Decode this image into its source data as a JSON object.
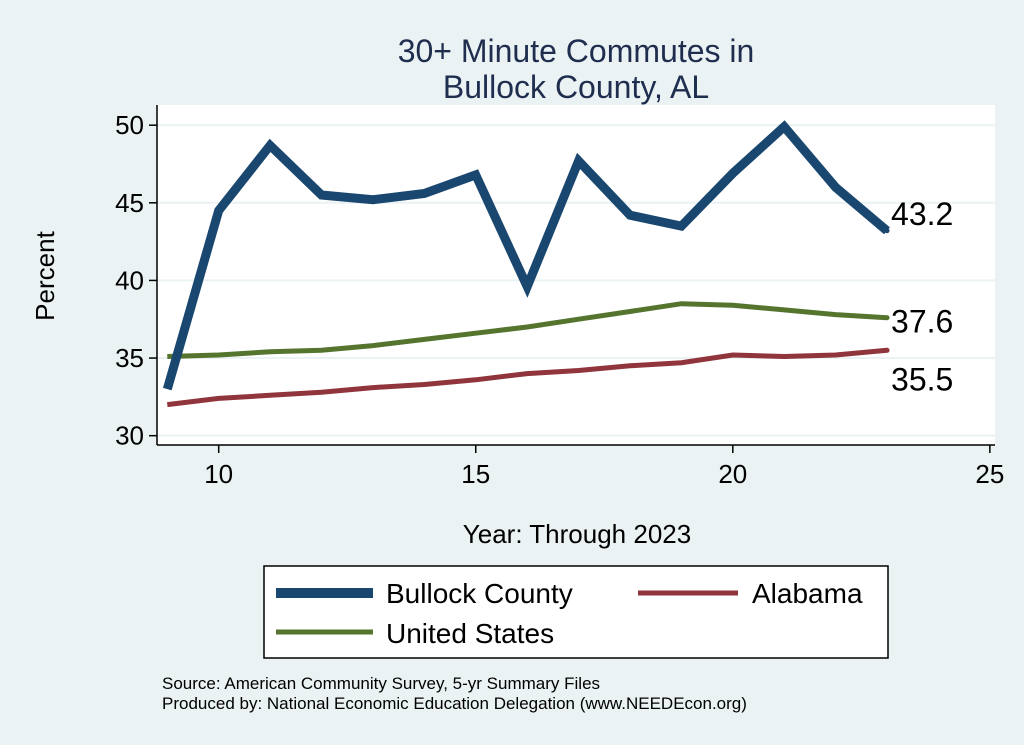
{
  "chart_data": {
    "type": "line",
    "title": [
      "30+ Minute Commutes in",
      "Bullock County, AL"
    ],
    "xlabel": "Year: Through 2023",
    "ylabel": "Percent",
    "xlim": [
      8.8,
      25.1
    ],
    "ylim": [
      29.4,
      51.3
    ],
    "xticks": [
      10,
      15,
      20,
      25
    ],
    "yticks": [
      30,
      35,
      40,
      45,
      50
    ],
    "grid": true,
    "series": [
      {
        "name": "Bullock County",
        "color": "#1a476f",
        "x": [
          9,
          10,
          11,
          12,
          13,
          14,
          15,
          16,
          17,
          18,
          19,
          20,
          21,
          22,
          23
        ],
        "values": [
          33.0,
          44.5,
          48.7,
          45.5,
          45.2,
          45.6,
          46.8,
          39.6,
          47.7,
          44.2,
          43.5,
          46.9,
          49.9,
          46.0,
          43.2
        ],
        "end_label": "43.2"
      },
      {
        "name": "Alabama",
        "color": "#90353b",
        "x": [
          9,
          10,
          11,
          12,
          13,
          14,
          15,
          16,
          17,
          18,
          19,
          20,
          21,
          22,
          23
        ],
        "values": [
          32.0,
          32.4,
          32.6,
          32.8,
          33.1,
          33.3,
          33.6,
          34.0,
          34.2,
          34.5,
          34.7,
          35.2,
          35.1,
          35.2,
          35.5
        ],
        "end_label": "35.5"
      },
      {
        "name": "United States",
        "color": "#55752f",
        "x": [
          9,
          10,
          11,
          12,
          13,
          14,
          15,
          16,
          17,
          18,
          19,
          20,
          21,
          22,
          23
        ],
        "values": [
          35.1,
          35.2,
          35.4,
          35.5,
          35.8,
          36.2,
          36.6,
          37.0,
          37.5,
          38.0,
          38.5,
          38.4,
          38.1,
          37.8,
          37.6
        ],
        "end_label": "37.6"
      }
    ],
    "legend": {
      "position": "bottom",
      "entries": [
        "Bullock County",
        "Alabama",
        "United States"
      ]
    },
    "source_lines": [
      "Source: American Community Survey, 5-yr Summary Files",
      "Produced by: National Economic Education Delegation (www.NEEDEcon.org)"
    ]
  },
  "colors": {
    "background": "#eaf2f3",
    "plot_background": "#ffffff",
    "grid": "#eaf2f3",
    "title": "#1f2d4f"
  }
}
